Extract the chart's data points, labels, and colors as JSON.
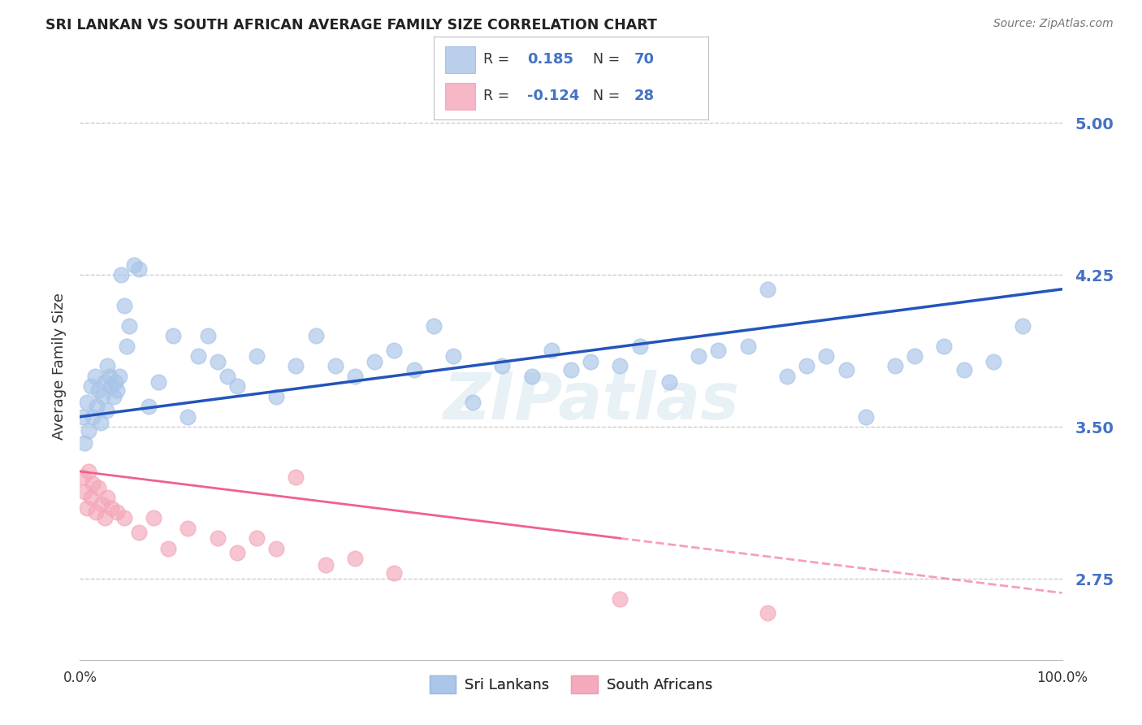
{
  "title": "SRI LANKAN VS SOUTH AFRICAN AVERAGE FAMILY SIZE CORRELATION CHART",
  "source": "Source: ZipAtlas.com",
  "ylabel": "Average Family Size",
  "yticks": [
    2.75,
    3.5,
    4.25,
    5.0
  ],
  "ytick_labels": [
    "2.75",
    "3.50",
    "4.25",
    "5.00"
  ],
  "ytick_color": "#4472c4",
  "background_color": "#ffffff",
  "watermark": "ZIPatlas",
  "sri_lankans_R": "0.185",
  "sri_lankans_N": "70",
  "south_africans_R": "-0.124",
  "south_africans_N": "28",
  "sri_lankans_color": "#a8c4e8",
  "south_africans_color": "#f4a7b9",
  "sri_lankans_line_color": "#2255bb",
  "south_africans_line_color": "#f06090",
  "legend_text_color": "#4472c4",
  "legend_label_color": "#222222",
  "sri_lankans_x": [
    0.3,
    0.5,
    0.7,
    0.9,
    1.1,
    1.3,
    1.5,
    1.7,
    1.9,
    2.1,
    2.3,
    2.5,
    2.7,
    2.8,
    3.0,
    3.2,
    3.4,
    3.6,
    3.8,
    4.0,
    4.2,
    4.5,
    4.8,
    5.0,
    5.5,
    6.0,
    7.0,
    8.0,
    9.5,
    11.0,
    12.0,
    13.0,
    14.0,
    15.0,
    16.0,
    18.0,
    20.0,
    22.0,
    24.0,
    26.0,
    28.0,
    30.0,
    32.0,
    34.0,
    36.0,
    38.0,
    40.0,
    43.0,
    46.0,
    48.0,
    50.0,
    52.0,
    55.0,
    57.0,
    60.0,
    63.0,
    65.0,
    68.0,
    70.0,
    72.0,
    74.0,
    76.0,
    78.0,
    80.0,
    83.0,
    85.0,
    88.0,
    90.0,
    93.0,
    96.0
  ],
  "sri_lankans_y": [
    3.55,
    3.42,
    3.62,
    3.48,
    3.7,
    3.55,
    3.75,
    3.6,
    3.68,
    3.52,
    3.65,
    3.72,
    3.58,
    3.8,
    3.75,
    3.7,
    3.65,
    3.72,
    3.68,
    3.75,
    4.25,
    4.1,
    3.9,
    4.0,
    4.3,
    4.28,
    3.6,
    3.72,
    3.95,
    3.55,
    3.85,
    3.95,
    3.82,
    3.75,
    3.7,
    3.85,
    3.65,
    3.8,
    3.95,
    3.8,
    3.75,
    3.82,
    3.88,
    3.78,
    4.0,
    3.85,
    3.62,
    3.8,
    3.75,
    3.88,
    3.78,
    3.82,
    3.8,
    3.9,
    3.72,
    3.85,
    3.88,
    3.9,
    4.18,
    3.75,
    3.8,
    3.85,
    3.78,
    3.55,
    3.8,
    3.85,
    3.9,
    3.78,
    3.82,
    4.0
  ],
  "south_africans_x": [
    0.3,
    0.5,
    0.7,
    0.9,
    1.1,
    1.3,
    1.6,
    1.9,
    2.2,
    2.5,
    2.8,
    3.2,
    3.8,
    4.5,
    6.0,
    7.5,
    9.0,
    11.0,
    14.0,
    16.0,
    18.0,
    20.0,
    22.0,
    25.0,
    28.0,
    32.0,
    55.0,
    70.0
  ],
  "south_africans_y": [
    3.25,
    3.18,
    3.1,
    3.28,
    3.15,
    3.22,
    3.08,
    3.2,
    3.12,
    3.05,
    3.15,
    3.1,
    3.08,
    3.05,
    2.98,
    3.05,
    2.9,
    3.0,
    2.95,
    2.88,
    2.95,
    2.9,
    3.25,
    2.82,
    2.85,
    2.78,
    2.65,
    2.58
  ],
  "xlim": [
    0,
    100
  ],
  "ylim": [
    2.35,
    5.25
  ],
  "sri_line_x0": 0,
  "sri_line_y0": 3.55,
  "sri_line_x1": 100,
  "sri_line_y1": 4.18,
  "sa_line_x0": 0,
  "sa_line_y0": 3.28,
  "sa_line_x1": 100,
  "sa_line_y1": 2.68,
  "sa_solid_end": 55
}
